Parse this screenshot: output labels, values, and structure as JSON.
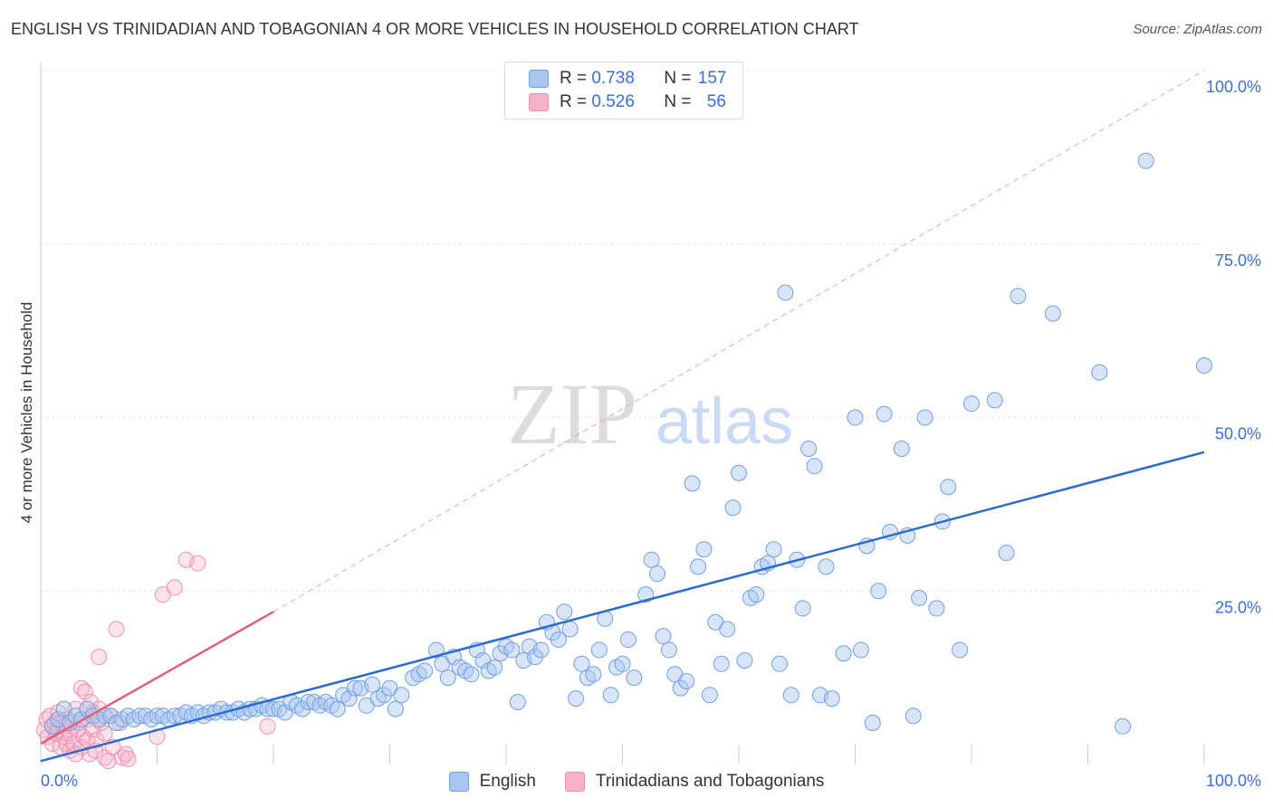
{
  "header": {
    "title": "ENGLISH VS TRINIDADIAN AND TOBAGONIAN 4 OR MORE VEHICLES IN HOUSEHOLD CORRELATION CHART",
    "source": "Source: ZipAtlas.com"
  },
  "watermark": {
    "zip": "ZIP",
    "atlas": "atlas"
  },
  "legend_top": [
    {
      "swatch_color": "#a9c6f0",
      "r_label": "R = ",
      "r_value": "0.738",
      "n_label": "N = ",
      "n_value": "157"
    },
    {
      "swatch_color": "#f6b3c6",
      "r_label": "R = ",
      "r_value": "0.526",
      "n_label": "N = ",
      "n_value": "56"
    }
  ],
  "chart_data": {
    "type": "scatter",
    "title": "ENGLISH VS TRINIDADIAN AND TOBAGONIAN 4 OR MORE VEHICLES IN HOUSEHOLD CORRELATION CHART",
    "xlabel": "",
    "ylabel": "4 or more Vehicles in Household",
    "xlim": [
      0,
      100
    ],
    "ylim": [
      0,
      100
    ],
    "x_tick_labels": [
      "0.0%",
      "100.0%"
    ],
    "y_ticks": [
      25,
      50,
      75,
      100
    ],
    "y_tick_labels": [
      "25.0%",
      "50.0%",
      "75.0%",
      "100.0%"
    ],
    "grid": true,
    "legend_position": "top-center",
    "series": [
      {
        "name": "English",
        "color": "#6fa0e6",
        "trend": {
          "x": [
            0,
            100
          ],
          "y": [
            0.5,
            45
          ]
        },
        "points": [
          [
            1,
            5.5
          ],
          [
            1.5,
            6.5
          ],
          [
            2,
            8
          ],
          [
            2.5,
            6
          ],
          [
            3,
            7
          ],
          [
            3.5,
            6.5
          ],
          [
            4,
            8
          ],
          [
            4.5,
            7
          ],
          [
            5,
            6.5
          ],
          [
            5.5,
            7
          ],
          [
            6,
            7
          ],
          [
            6.5,
            6
          ],
          [
            7,
            6.5
          ],
          [
            7.5,
            7
          ],
          [
            8,
            6.5
          ],
          [
            8.5,
            7
          ],
          [
            9,
            7
          ],
          [
            9.5,
            6.5
          ],
          [
            10,
            7
          ],
          [
            10.5,
            7
          ],
          [
            11,
            6.5
          ],
          [
            11.5,
            7
          ],
          [
            12,
            7
          ],
          [
            12.5,
            7.5
          ],
          [
            13,
            7
          ],
          [
            13.5,
            7.5
          ],
          [
            14,
            7
          ],
          [
            14.5,
            7.5
          ],
          [
            15,
            7.5
          ],
          [
            15.5,
            8
          ],
          [
            16,
            7.5
          ],
          [
            16.5,
            7.5
          ],
          [
            17,
            8
          ],
          [
            17.5,
            7.5
          ],
          [
            18,
            8
          ],
          [
            18.5,
            8
          ],
          [
            19,
            8.5
          ],
          [
            19.5,
            8
          ],
          [
            20,
            8
          ],
          [
            20.5,
            8
          ],
          [
            21,
            7.5
          ],
          [
            21.5,
            9
          ],
          [
            22,
            8.5
          ],
          [
            22.5,
            8
          ],
          [
            23,
            9
          ],
          [
            23.5,
            9
          ],
          [
            24,
            8.5
          ],
          [
            24.5,
            9
          ],
          [
            25,
            8.5
          ],
          [
            25.5,
            8
          ],
          [
            26,
            10
          ],
          [
            26.5,
            9.5
          ],
          [
            27,
            11
          ],
          [
            27.5,
            11
          ],
          [
            28,
            8.5
          ],
          [
            28.5,
            11.5
          ],
          [
            29,
            9.5
          ],
          [
            29.5,
            10
          ],
          [
            30,
            11
          ],
          [
            30.5,
            8
          ],
          [
            31,
            10
          ],
          [
            32,
            12.5
          ],
          [
            32.5,
            13
          ],
          [
            33,
            13.5
          ],
          [
            34,
            16.5
          ],
          [
            34.5,
            14.5
          ],
          [
            35,
            12.5
          ],
          [
            35.5,
            15.5
          ],
          [
            36,
            14
          ],
          [
            36.5,
            13.5
          ],
          [
            37,
            13
          ],
          [
            37.5,
            16.5
          ],
          [
            38,
            15
          ],
          [
            38.5,
            13.5
          ],
          [
            39,
            14
          ],
          [
            39.5,
            16
          ],
          [
            40,
            17
          ],
          [
            40.5,
            16.5
          ],
          [
            41,
            9
          ],
          [
            41.5,
            15
          ],
          [
            42,
            17
          ],
          [
            42.5,
            15.5
          ],
          [
            43,
            16.5
          ],
          [
            43.5,
            20.5
          ],
          [
            44,
            19
          ],
          [
            44.5,
            18
          ],
          [
            45,
            22
          ],
          [
            45.5,
            19.5
          ],
          [
            46,
            9.5
          ],
          [
            46.5,
            14.5
          ],
          [
            47,
            12.5
          ],
          [
            47.5,
            13
          ],
          [
            48,
            16.5
          ],
          [
            48.5,
            21
          ],
          [
            49,
            10
          ],
          [
            49.5,
            14
          ],
          [
            50,
            14.5
          ],
          [
            50.5,
            18
          ],
          [
            51,
            12.5
          ],
          [
            52,
            24.5
          ],
          [
            52.5,
            29.5
          ],
          [
            53,
            27.5
          ],
          [
            53.5,
            18.5
          ],
          [
            54,
            16.5
          ],
          [
            54.5,
            13
          ],
          [
            55,
            11
          ],
          [
            55.5,
            12
          ],
          [
            56,
            40.5
          ],
          [
            56.5,
            28.5
          ],
          [
            57,
            31
          ],
          [
            57.5,
            10
          ],
          [
            58,
            20.5
          ],
          [
            58.5,
            14.5
          ],
          [
            59,
            19.5
          ],
          [
            59.5,
            37
          ],
          [
            60,
            42
          ],
          [
            60.5,
            15
          ],
          [
            61,
            24
          ],
          [
            61.5,
            24.5
          ],
          [
            62,
            28.5
          ],
          [
            62.5,
            29
          ],
          [
            63,
            31
          ],
          [
            63.5,
            14.5
          ],
          [
            64,
            68
          ],
          [
            64.5,
            10
          ],
          [
            65,
            29.5
          ],
          [
            65.5,
            22.5
          ],
          [
            66,
            45.5
          ],
          [
            66.5,
            43
          ],
          [
            67,
            10
          ],
          [
            67.5,
            28.5
          ],
          [
            68,
            9.5
          ],
          [
            69,
            16
          ],
          [
            70,
            50
          ],
          [
            70.5,
            16.5
          ],
          [
            71,
            31.5
          ],
          [
            71.5,
            6
          ],
          [
            72,
            25
          ],
          [
            72.5,
            50.5
          ],
          [
            73,
            33.5
          ],
          [
            74,
            45.5
          ],
          [
            74.5,
            33
          ],
          [
            75,
            7
          ],
          [
            75.5,
            24
          ],
          [
            76,
            50
          ],
          [
            77,
            22.5
          ],
          [
            77.5,
            35
          ],
          [
            78,
            40
          ],
          [
            79,
            16.5
          ],
          [
            80,
            52
          ],
          [
            82,
            52.5
          ],
          [
            83,
            30.5
          ],
          [
            84,
            67.5
          ],
          [
            87,
            65
          ],
          [
            91,
            56.5
          ],
          [
            93,
            5.5
          ],
          [
            95,
            87
          ],
          [
            100,
            57.5
          ]
        ]
      },
      {
        "name": "Trinidadians and Tobagonians",
        "color": "#f090b0",
        "trend": {
          "x": [
            0,
            20
          ],
          "y": [
            3,
            22
          ]
        },
        "points": [
          [
            0.3,
            5
          ],
          [
            0.5,
            6.5
          ],
          [
            0.6,
            4
          ],
          [
            0.8,
            7
          ],
          [
            1,
            5.5
          ],
          [
            1,
            3
          ],
          [
            1.2,
            6
          ],
          [
            1.3,
            4.5
          ],
          [
            1.5,
            5
          ],
          [
            1.5,
            7.5
          ],
          [
            1.7,
            2.5
          ],
          [
            1.8,
            6
          ],
          [
            2,
            4
          ],
          [
            2,
            5.5
          ],
          [
            2.2,
            3
          ],
          [
            2.3,
            6.5
          ],
          [
            2.5,
            2
          ],
          [
            2.5,
            4.5
          ],
          [
            2.7,
            5.5
          ],
          [
            2.8,
            3
          ],
          [
            3,
            8
          ],
          [
            3,
            1.5
          ],
          [
            3.2,
            5
          ],
          [
            3.3,
            6
          ],
          [
            3.5,
            2.5
          ],
          [
            3.5,
            11
          ],
          [
            3.7,
            4
          ],
          [
            3.8,
            10.5
          ],
          [
            4,
            3.5
          ],
          [
            4,
            6.5
          ],
          [
            4.2,
            1.5
          ],
          [
            4.3,
            9
          ],
          [
            4.5,
            5
          ],
          [
            4.5,
            7.5
          ],
          [
            4.7,
            2
          ],
          [
            4.8,
            3.5
          ],
          [
            5,
            8
          ],
          [
            5,
            15.5
          ],
          [
            5.2,
            6
          ],
          [
            5.5,
            1
          ],
          [
            5.5,
            4.5
          ],
          [
            5.8,
            0.5
          ],
          [
            6,
            7
          ],
          [
            6.2,
            2.5
          ],
          [
            6.5,
            19.5
          ],
          [
            6.8,
            6
          ],
          [
            7,
            1
          ],
          [
            7.3,
            1.5
          ],
          [
            7.5,
            0.8
          ],
          [
            10,
            4
          ],
          [
            10.5,
            24.5
          ],
          [
            11.5,
            25.5
          ],
          [
            12.5,
            29.5
          ],
          [
            13.5,
            29
          ],
          [
            19.5,
            5.5
          ]
        ]
      }
    ],
    "reference_line": {
      "x": [
        0,
        100
      ],
      "y": [
        0,
        100
      ],
      "style": "dashed"
    }
  },
  "legend_bottom": [
    {
      "label": "English",
      "swatch_color": "#a9c6f0"
    },
    {
      "label": "Trinidadians and Tobagonians",
      "swatch_color": "#f6b3c6"
    }
  ]
}
